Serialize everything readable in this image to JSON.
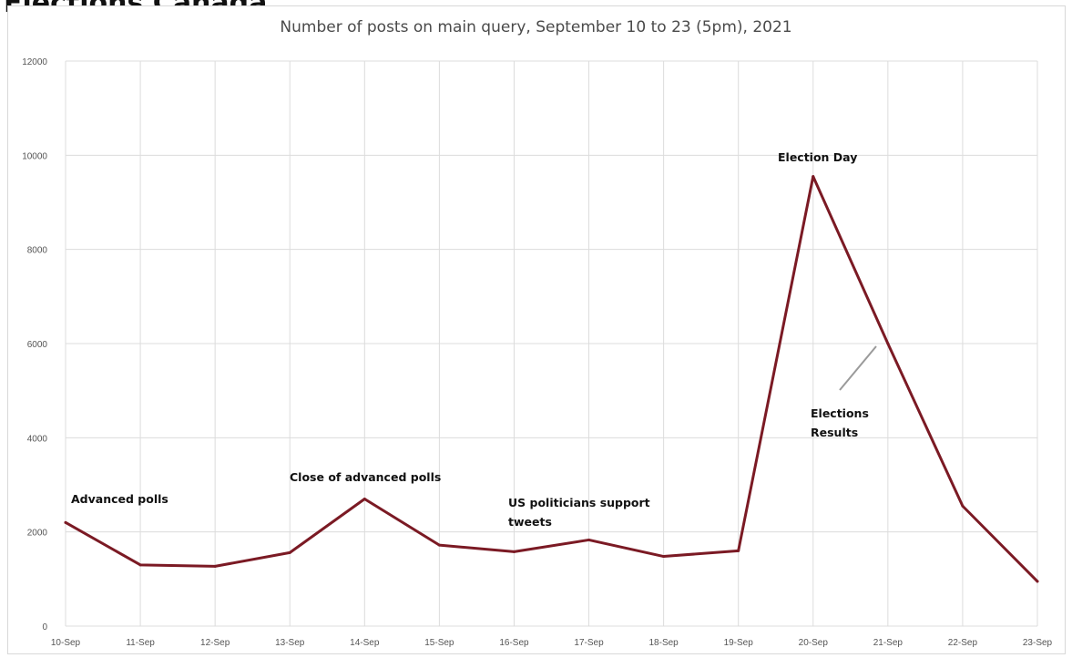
{
  "page": {
    "title": "Elections Canada"
  },
  "chart_data": {
    "type": "line",
    "title": "Number of posts on main query, September 10 to 23 (5pm), 2021",
    "xlabel": "",
    "ylabel": "",
    "ylim": [
      0,
      12000
    ],
    "yticks": [
      0,
      2000,
      4000,
      6000,
      8000,
      10000,
      12000
    ],
    "grid": true,
    "legend": "none",
    "categories": [
      "10-Sep",
      "11-Sep",
      "12-Sep",
      "13-Sep",
      "14-Sep",
      "15-Sep",
      "16-Sep",
      "17-Sep",
      "18-Sep",
      "19-Sep",
      "20-Sep",
      "21-Sep",
      "22-Sep",
      "23-Sep"
    ],
    "series": [
      {
        "values": [
          2200,
          1300,
          1270,
          1560,
          2700,
          1720,
          1580,
          1830,
          1480,
          1600,
          9550,
          6000,
          2550,
          950
        ],
        "color": "#7b1a24"
      }
    ],
    "annotations": [
      {
        "lines": [
          "Advanced polls"
        ],
        "category": "10-Sep"
      },
      {
        "lines": [
          "Close of advanced polls"
        ],
        "category": "14-Sep"
      },
      {
        "lines": [
          "US politicians support",
          "tweets"
        ],
        "category": "17-Sep"
      },
      {
        "lines": [
          "Election Day"
        ],
        "category": "20-Sep"
      },
      {
        "lines": [
          "Elections",
          "Results"
        ],
        "category": "21-Sep"
      }
    ]
  }
}
